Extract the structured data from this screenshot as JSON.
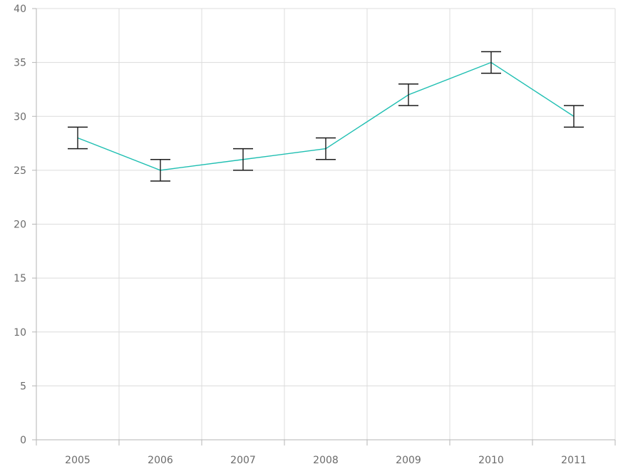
{
  "chart_data": {
    "type": "line",
    "categories": [
      "2005",
      "2006",
      "2007",
      "2008",
      "2009",
      "2010",
      "2011"
    ],
    "series": [
      {
        "values": [
          28,
          25,
          26,
          27,
          32,
          35,
          30
        ],
        "error": [
          1,
          1,
          1,
          1,
          1,
          1,
          1
        ],
        "color": "#20bfb2"
      }
    ],
    "ylim": [
      0,
      40
    ],
    "yticks": [
      0,
      5,
      10,
      15,
      20,
      25,
      30,
      35,
      40
    ],
    "grid": true,
    "error_bar_color": "#1a1a1a",
    "title": "",
    "xlabel": "",
    "ylabel": ""
  }
}
